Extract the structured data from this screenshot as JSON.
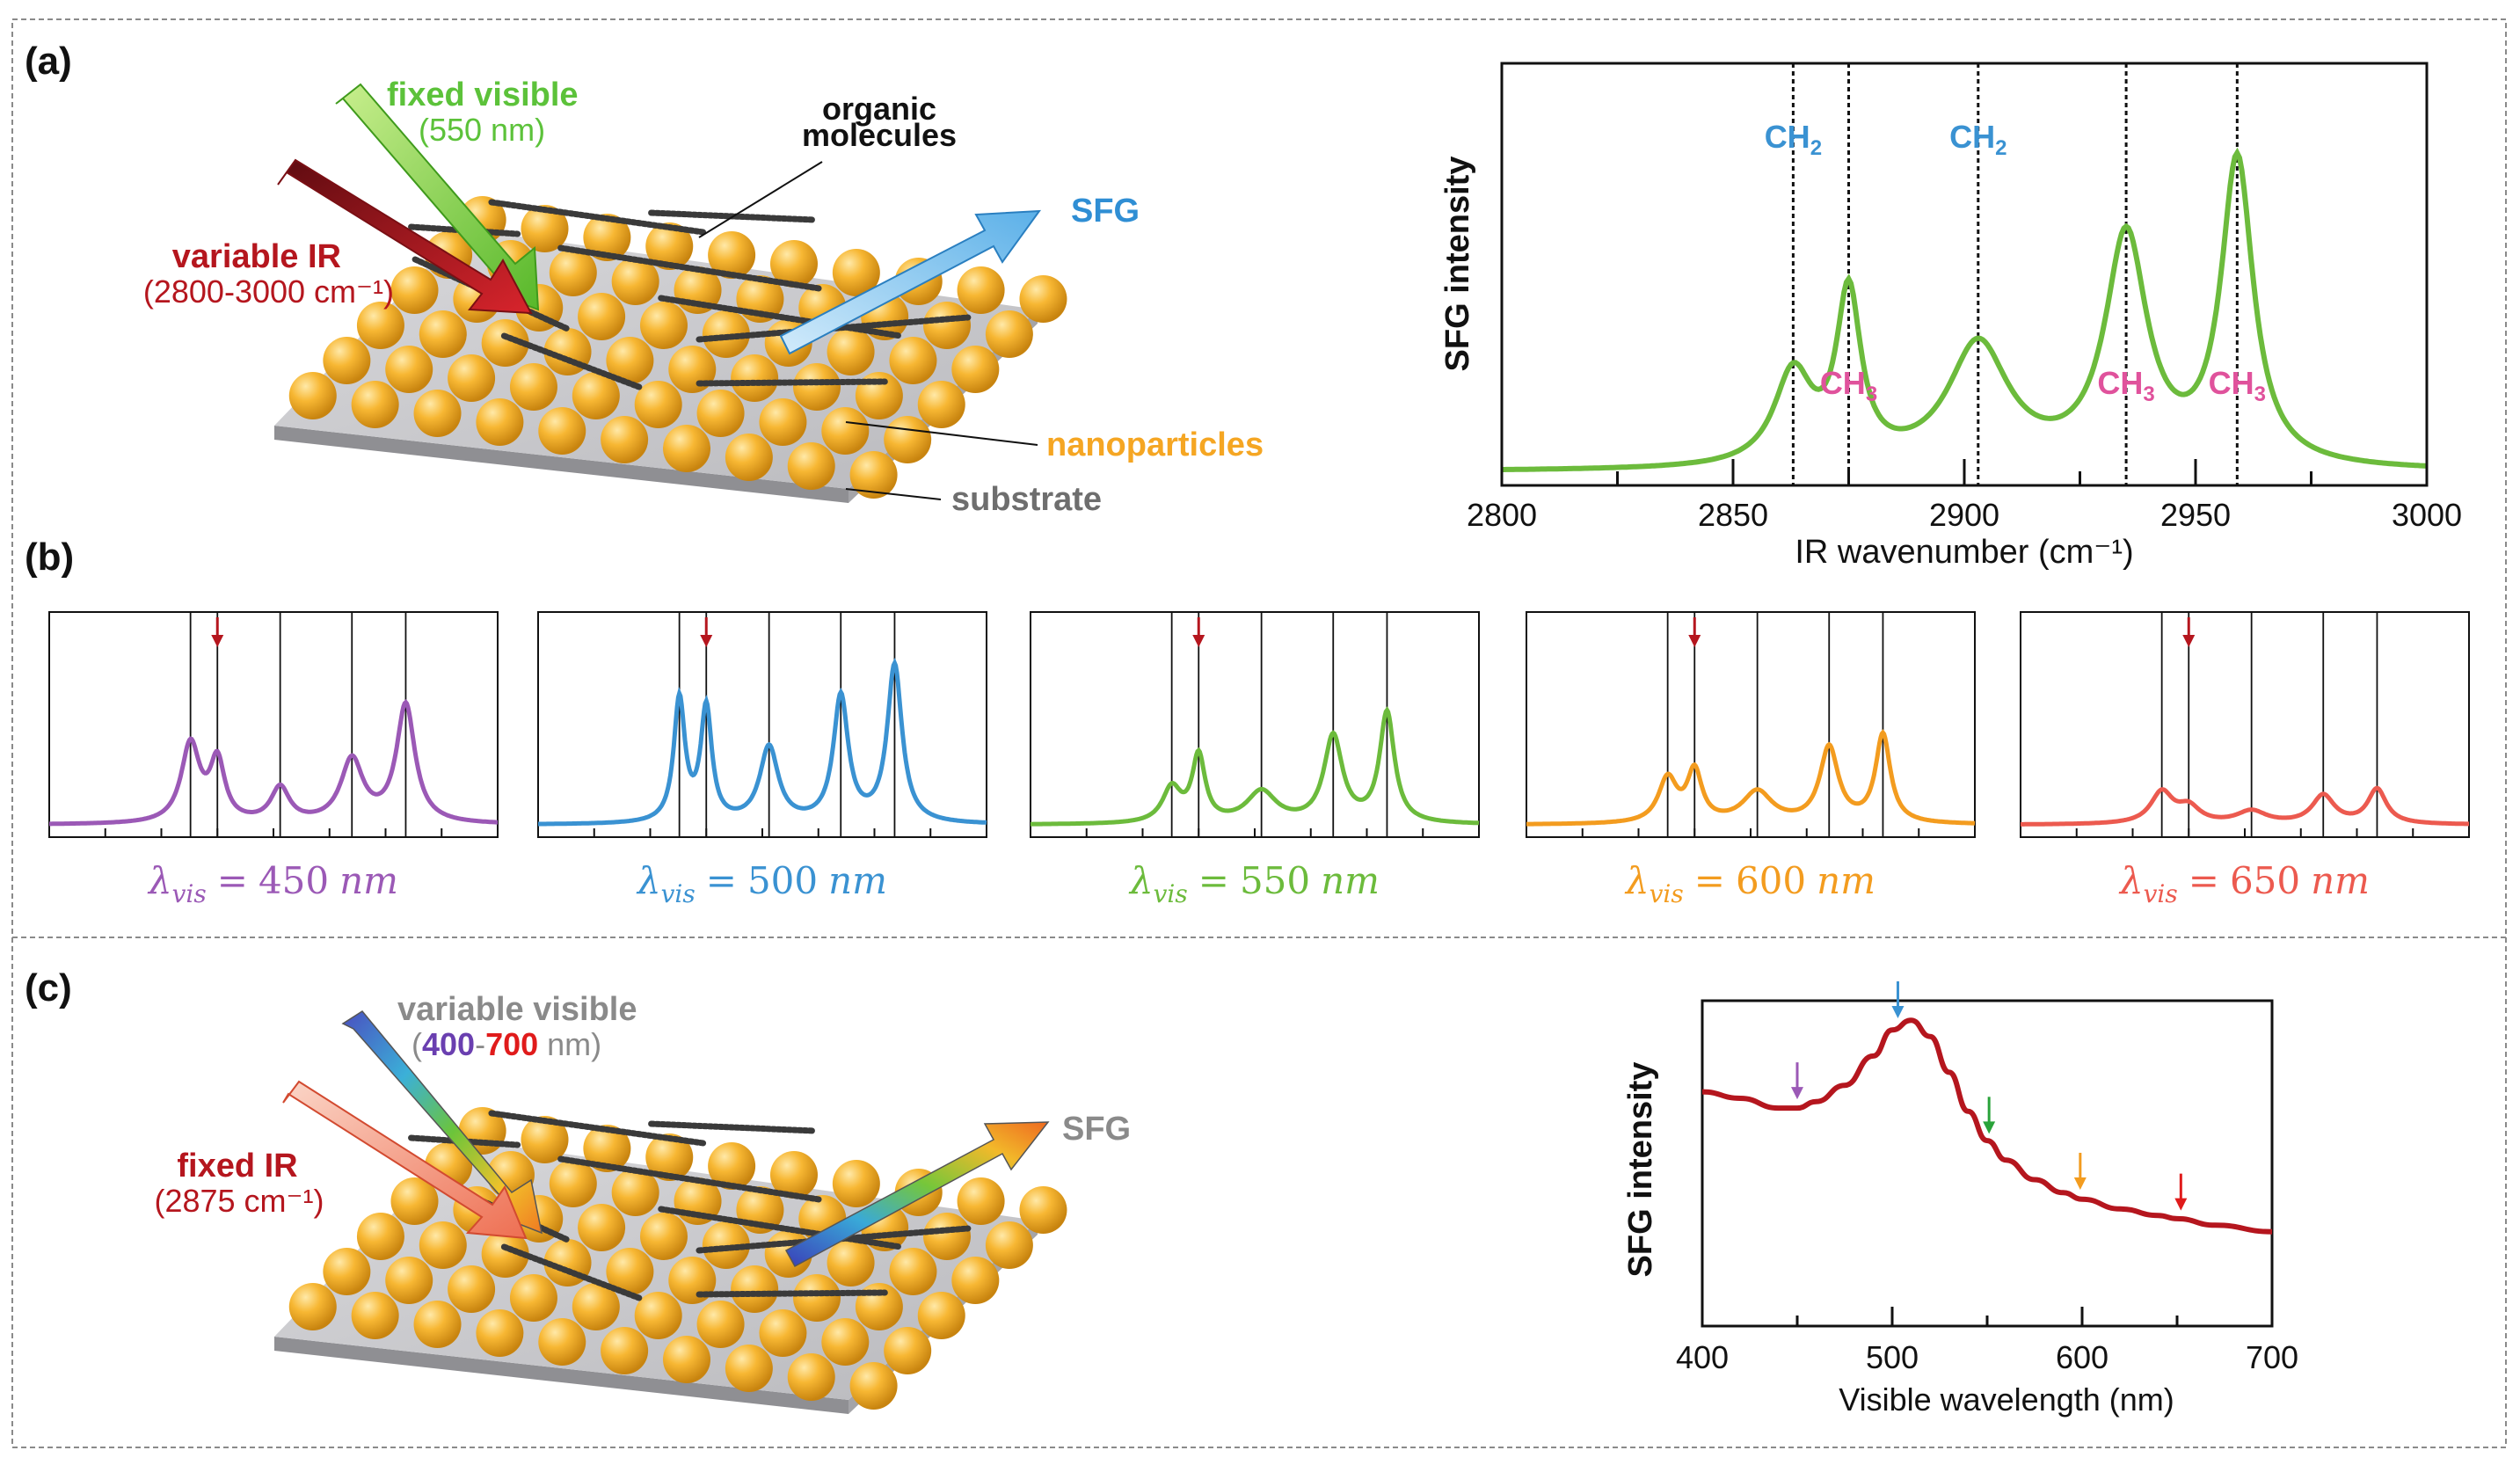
{
  "panels": {
    "a": {
      "label": "(a)",
      "fixed_visible_label": "fixed visible",
      "fixed_visible_wavelength": "(550 nm)",
      "variable_ir_label": "variable IR",
      "variable_ir_range": "(2800-3000 cm⁻¹)",
      "organic_label_1": "organic",
      "organic_label_2": "molecules",
      "sfg_label": "SFG",
      "nanoparticles_label": "nanoparticles",
      "substrate_label": "substrate",
      "colors": {
        "visible": "#5cc23a",
        "ir": "#b5161e",
        "sfg": "#2f8ed4",
        "nanoparticles": "#f5a623",
        "substrate": "#6e6e6e"
      }
    },
    "b": {
      "label": "(b)",
      "spectra": [
        {
          "lambda_text": "450",
          "color": "#9b59b6"
        },
        {
          "lambda_text": "500",
          "color": "#3a92d2"
        },
        {
          "lambda_text": "550",
          "color": "#6cbb3c"
        },
        {
          "lambda_text": "600",
          "color": "#f39c1f"
        },
        {
          "lambda_text": "650",
          "color": "#ec5a4f"
        }
      ],
      "lambda_symbol": "λ",
      "lambda_subscript": "vis",
      "equals": "=",
      "unit": "nm",
      "marker_color": "#b5161e"
    },
    "c": {
      "label": "(c)",
      "variable_visible_label": "variable visible",
      "visible_range_open": "(",
      "visible_range_low": "400",
      "visible_range_dash": "-",
      "visible_range_high": "700",
      "visible_range_unit": " nm)",
      "fixed_ir_label": "fixed IR",
      "fixed_ir_value": "(2875 cm⁻¹)",
      "sfg_label": "SFG",
      "colors": {
        "ir": "#b5161e",
        "sfg_text": "#8a8a8a",
        "low": "#6a3fb0",
        "high": "#e01b1b"
      }
    }
  },
  "chart_data": [
    {
      "type": "line",
      "title": "",
      "xlabel": "IR wavenumber (cm⁻¹)",
      "ylabel": "SFG intensity",
      "xlim": [
        2800,
        3000
      ],
      "xticks": [
        "2800",
        "2850",
        "2900",
        "2950",
        "3000"
      ],
      "color": "#6cbb3c",
      "vlines": [
        2863,
        2875,
        2903,
        2935,
        2959
      ],
      "annotations": [
        {
          "text": "CH",
          "sub": "2",
          "x": 2863,
          "color": "#3a92d2",
          "pos": "top"
        },
        {
          "text": "CH",
          "sub": "2",
          "x": 2903,
          "color": "#3a92d2",
          "pos": "top"
        },
        {
          "text": "CH",
          "sub": "3",
          "x": 2875,
          "color": "#e0529c",
          "pos": "bottom"
        },
        {
          "text": "CH",
          "sub": "3",
          "x": 2935,
          "color": "#e0529c",
          "pos": "bottom"
        },
        {
          "text": "CH",
          "sub": "3",
          "x": 2959,
          "color": "#e0529c",
          "pos": "bottom"
        }
      ]
    },
    {
      "type": "line",
      "title": "",
      "xlabel": "Visible wavelength (nm)",
      "ylabel": "SFG intensity",
      "xlim": [
        400,
        700
      ],
      "xticks": [
        "400",
        "500",
        "600",
        "700"
      ],
      "color": "#b5161e",
      "x": [
        400,
        420,
        440,
        450,
        460,
        475,
        490,
        500,
        510,
        520,
        530,
        540,
        550,
        560,
        575,
        590,
        600,
        620,
        640,
        650,
        670,
        700
      ],
      "y": [
        0.72,
        0.7,
        0.67,
        0.67,
        0.69,
        0.74,
        0.83,
        0.91,
        0.94,
        0.89,
        0.78,
        0.66,
        0.57,
        0.51,
        0.45,
        0.41,
        0.39,
        0.36,
        0.34,
        0.33,
        0.31,
        0.29
      ],
      "markers": [
        {
          "x": 450,
          "color": "#9b59b6"
        },
        {
          "x": 503,
          "color": "#3a92d2"
        },
        {
          "x": 551,
          "color": "#2aa33a"
        },
        {
          "x": 599,
          "color": "#f39c1f"
        },
        {
          "x": 652,
          "color": "#e01b1b"
        }
      ]
    }
  ]
}
